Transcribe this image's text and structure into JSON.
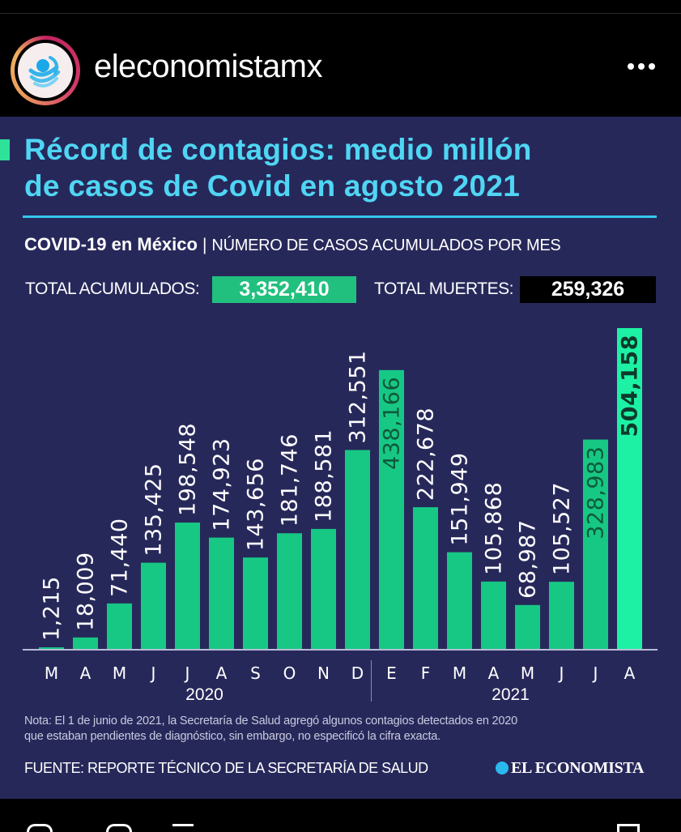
{
  "post": {
    "username": "eleconomistamx",
    "more_icon": "ellipsis-icon",
    "avatar_icon": "el-economista-globe-icon"
  },
  "infographic": {
    "title_line1": "Récord de contagios: medio millón",
    "title_line2": "de casos de Covid en agosto 2021",
    "subtitle_bold": "COVID-19 en México",
    "subtitle_sep": "|",
    "subtitle_rest": "NÚMERO DE CASOS ACUMULADOS POR MES",
    "total_cases_label": "TOTAL ACUMULADOS:",
    "total_cases_value": "3,352,410",
    "total_deaths_label": "TOTAL MUERTES:",
    "total_deaths_value": "259,326",
    "note_line1": "Nota: El 1 de junio de 2021, la Secretaría de Salud agregó algunos contagios detectados en 2020",
    "note_line2": "que estaban pendientes de diagnóstico, sin embargo, no especificó la cifra exacta.",
    "source": "FUENTE: REPORTE TÉCNICO DE LA SECRETARÍA DE SALUD",
    "brand": "EL ECONOMISTA"
  },
  "colors": {
    "background": "#27285a",
    "bar": "#17c884",
    "bar_highlight": "#1df2a4",
    "title": "#4fd6f4",
    "accent_green": "#2fe29a"
  },
  "chart_data": {
    "type": "bar",
    "title": "COVID-19 en México | NÚMERO DE CASOS ACUMULADOS POR MES",
    "categories": [
      "M",
      "A",
      "M",
      "J",
      "J",
      "A",
      "S",
      "O",
      "N",
      "D",
      "E",
      "F",
      "M",
      "A",
      "M",
      "J",
      "J",
      "A"
    ],
    "years": [
      {
        "label": "2020",
        "from": 0,
        "to": 9
      },
      {
        "label": "2021",
        "from": 10,
        "to": 17
      }
    ],
    "values": [
      1215,
      18009,
      71440,
      135425,
      198548,
      174923,
      143656,
      181746,
      188581,
      312551,
      438166,
      222678,
      151949,
      105868,
      68987,
      105527,
      328983,
      504158
    ],
    "labels": [
      "1,215",
      "18,009",
      "71,440",
      "135,425",
      "198,548",
      "174,923",
      "143,656",
      "181,746",
      "188,581",
      "312,551",
      "438,166",
      "222,678",
      "151,949",
      "105,868",
      "68,987",
      "105,527",
      "328,983",
      "504,158"
    ],
    "inside_label_indices": [
      10,
      16,
      17
    ],
    "highlight_index": 17,
    "ylim": [
      0,
      504158
    ],
    "xlabel": "",
    "ylabel": "",
    "grid": false
  }
}
